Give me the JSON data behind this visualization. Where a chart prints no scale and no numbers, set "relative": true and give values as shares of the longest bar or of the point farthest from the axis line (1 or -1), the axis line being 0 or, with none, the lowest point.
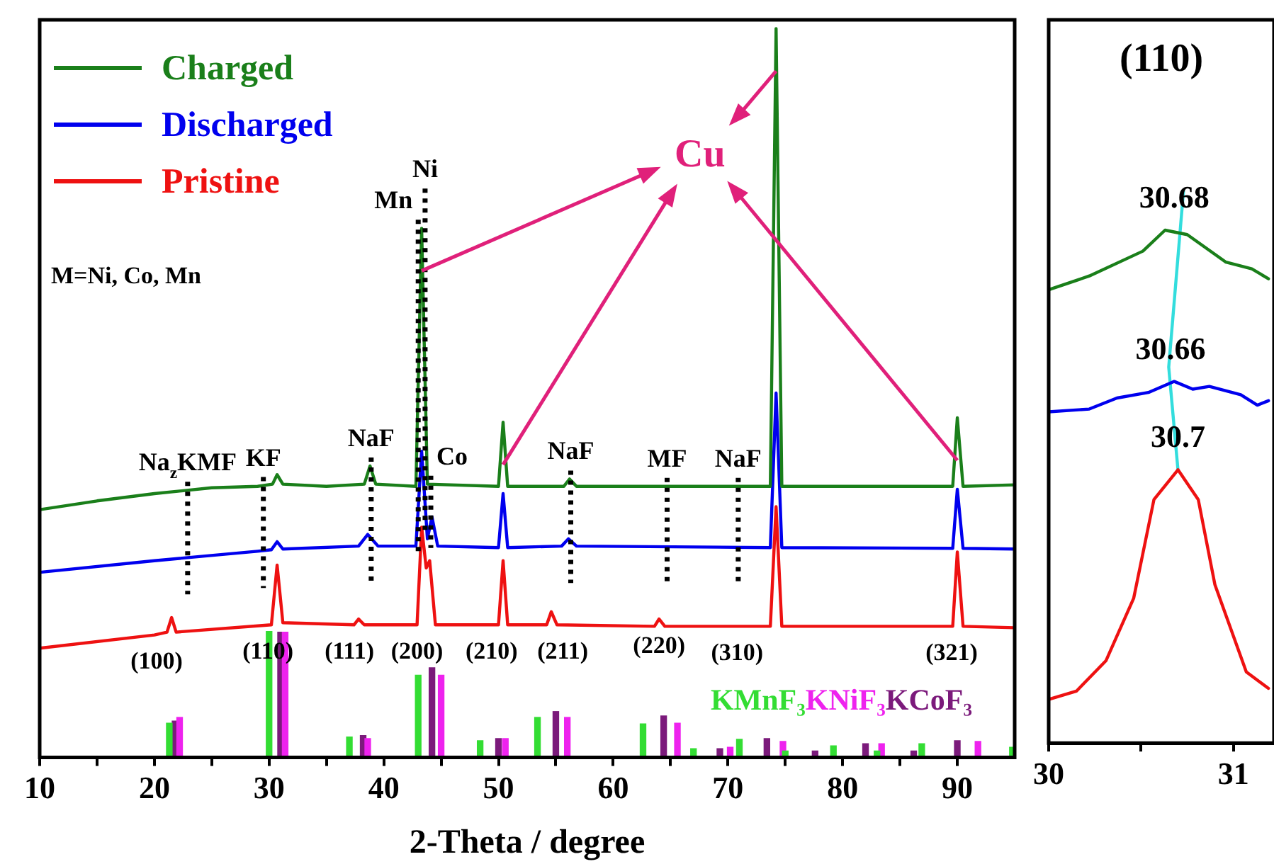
{
  "chart_data": [
    {
      "type": "line",
      "xlabel": "2-Theta / degree",
      "relative": true,
      "legend": "top left",
      "marker": "none",
      "line_style": "solid",
      "grid": false,
      "xlim": [
        10,
        95
      ],
      "xticks": [
        10,
        {
          "value": 15,
          "label": null
        },
        20,
        {
          "value": 25,
          "label": null
        },
        30,
        {
          "value": 35,
          "label": null
        },
        40,
        {
          "value": 45,
          "label": null
        },
        50,
        {
          "value": 55,
          "label": null
        },
        60,
        {
          "value": 65,
          "label": null
        },
        70,
        {
          "value": 75,
          "label": null
        },
        80,
        {
          "value": 85,
          "label": null
        },
        90
      ],
      "series": [
        {
          "name": "Charged",
          "color": "#1a7f1a",
          "type": "line",
          "x": [
            10,
            15,
            20,
            25,
            29,
            30.3,
            30.7,
            31.2,
            35,
            38.3,
            38.8,
            39.3,
            42.8,
            43.3,
            43.8,
            50.0,
            50.4,
            50.8,
            55.7,
            56.2,
            56.8,
            73.7,
            74.2,
            74.7,
            89.6,
            90.0,
            90.5,
            95
          ],
          "values": [
            0.34,
            0.352,
            0.362,
            0.37,
            0.372,
            0.375,
            0.388,
            0.375,
            0.372,
            0.375,
            0.4,
            0.375,
            0.372,
            0.726,
            0.375,
            0.372,
            0.46,
            0.372,
            0.372,
            0.382,
            0.372,
            0.372,
            1.0,
            0.372,
            0.372,
            0.466,
            0.372,
            0.374
          ]
        },
        {
          "name": "Discharged",
          "color": "#0000ee",
          "type": "line",
          "x": [
            10,
            20,
            29,
            30.2,
            30.7,
            31.2,
            37.8,
            38.6,
            39.5,
            42.8,
            43.3,
            43.8,
            44.2,
            44.7,
            50.0,
            50.4,
            50.8,
            55.5,
            56.1,
            56.8,
            73.7,
            74.2,
            74.7,
            89.6,
            90.0,
            90.5,
            95
          ],
          "values": [
            0.254,
            0.27,
            0.283,
            0.285,
            0.296,
            0.286,
            0.29,
            0.306,
            0.29,
            0.29,
            0.42,
            0.3,
            0.33,
            0.29,
            0.288,
            0.362,
            0.288,
            0.29,
            0.3,
            0.29,
            0.288,
            0.5,
            0.288,
            0.287,
            0.368,
            0.287,
            0.286
          ]
        },
        {
          "name": "Pristine",
          "color": "#ee1111",
          "type": "line",
          "x": [
            10,
            20,
            21.1,
            21.5,
            21.9,
            30.2,
            30.7,
            31.2,
            37.4,
            37.8,
            38.3,
            42.9,
            43.3,
            43.7,
            44.0,
            44.5,
            50.0,
            50.4,
            50.8,
            54.2,
            54.6,
            55.1,
            63.6,
            64.0,
            64.5,
            73.7,
            74.2,
            74.7,
            89.6,
            90.0,
            90.5,
            95
          ],
          "values": [
            0.15,
            0.168,
            0.172,
            0.192,
            0.172,
            0.182,
            0.264,
            0.185,
            0.182,
            0.19,
            0.182,
            0.182,
            0.316,
            0.26,
            0.27,
            0.182,
            0.182,
            0.27,
            0.182,
            0.182,
            0.2,
            0.182,
            0.18,
            0.19,
            0.18,
            0.18,
            0.344,
            0.18,
            0.18,
            0.282,
            0.18,
            0.178
          ]
        },
        {
          "name": "KMnF₃",
          "color": "#33dd33",
          "type": "bar",
          "x": [
            21.3,
            30.0,
            37.0,
            43.0,
            48.4,
            53.4,
            62.6,
            67.0,
            71.0,
            75.0,
            79.2,
            83.0,
            86.9,
            94.8
          ],
          "values": [
            0.047,
            0.173,
            0.028,
            0.113,
            0.023,
            0.055,
            0.046,
            0.012,
            0.025,
            0.009,
            0.016,
            0.009,
            0.019,
            0.014
          ]
        },
        {
          "name": "KNiF₃",
          "color": "#ee22ee",
          "type": "bar",
          "x": [
            22.2,
            31.4,
            38.6,
            45.0,
            50.6,
            56.0,
            65.6,
            70.2,
            74.8,
            83.4,
            91.8
          ],
          "values": [
            0.055,
            0.172,
            0.026,
            0.113,
            0.026,
            0.055,
            0.047,
            0.014,
            0.022,
            0.019,
            0.022
          ]
        },
        {
          "name": "KCoF₃",
          "color": "#7b1a7b",
          "type": "bar",
          "x": [
            21.8,
            31.0,
            38.2,
            44.2,
            50.0,
            55.0,
            64.4,
            69.3,
            73.4,
            77.6,
            82.0,
            86.2,
            90.0
          ],
          "values": [
            0.05,
            0.172,
            0.03,
            0.123,
            0.026,
            0.063,
            0.057,
            0.012,
            0.026,
            0.009,
            0.019,
            0.009,
            0.023
          ]
        }
      ],
      "ref_lines": [
        {
          "axis": "x",
          "value": 22.9,
          "label": "Na$_{z}$KMF",
          "color": "#000000",
          "line_style": "dotted"
        },
        {
          "axis": "x",
          "value": 29.5,
          "label": "KF",
          "color": "#000000",
          "line_style": "dotted"
        },
        {
          "axis": "x",
          "value": 38.9,
          "label": "NaF",
          "color": "#000000",
          "line_style": "dotted"
        },
        {
          "axis": "x",
          "value": 43.0,
          "label": "Mn",
          "color": "#000000",
          "line_style": "dotted"
        },
        {
          "axis": "x",
          "value": 43.6,
          "label": "Ni",
          "color": "#000000",
          "line_style": "dotted"
        },
        {
          "axis": "x",
          "value": 44.1,
          "label": "Co",
          "color": "#000000",
          "line_style": "dotted"
        },
        {
          "axis": "x",
          "value": 56.3,
          "label": "NaF",
          "color": "#000000",
          "line_style": "dotted"
        },
        {
          "axis": "x",
          "value": 64.7,
          "label": "MF",
          "color": "#000000",
          "line_style": "dotted"
        },
        {
          "axis": "x",
          "value": 70.9,
          "label": "NaF",
          "color": "#000000",
          "line_style": "dotted"
        }
      ],
      "annotations": [
        "M=Ni, Co, Mn",
        "Cu",
        {
          "text": "(100)",
          "x": 20.2,
          "y": 0.169
        },
        {
          "text": "(110)",
          "x": 29.9,
          "y": 0.182
        },
        {
          "text": "(111)",
          "x": 37.0,
          "y": 0.182
        },
        {
          "text": "(200)",
          "x": 42.9,
          "y": 0.182
        },
        {
          "text": "(210)",
          "x": 49.4,
          "y": 0.182
        },
        {
          "text": "(211)",
          "x": 55.6,
          "y": 0.182
        },
        {
          "text": "(220)",
          "x": 64.0,
          "y": 0.19
        },
        {
          "text": "(310)",
          "x": 70.8,
          "y": 0.18
        },
        {
          "text": "(321)",
          "x": 89.5,
          "y": 0.18
        }
      ]
    },
    {
      "type": "line",
      "title": "(110)",
      "relative": true,
      "marker": "none",
      "line_style": "solid",
      "grid": false,
      "xlim": [
        30,
        31.22
      ],
      "xticks": [
        30,
        {
          "value": 30.5,
          "label": null
        },
        31
      ],
      "series": [
        {
          "color": "#1a7f1a",
          "x": [
            30,
            30.22,
            30.51,
            30.63,
            30.75,
            30.96,
            31.1,
            31.19
          ],
          "values": [
            0.821,
            0.846,
            0.891,
            0.929,
            0.921,
            0.871,
            0.859,
            0.841
          ]
        },
        {
          "color": "#0000ee",
          "x": [
            30,
            30.22,
            30.37,
            30.54,
            30.68,
            30.78,
            30.87,
            31.04,
            31.13,
            31.19
          ],
          "values": [
            0.6,
            0.605,
            0.625,
            0.635,
            0.655,
            0.641,
            0.646,
            0.631,
            0.612,
            0.62
          ]
        },
        {
          "color": "#ee1111",
          "x": [
            30,
            30.15,
            30.31,
            30.46,
            30.57,
            30.7,
            30.81,
            30.9,
            31.07,
            31.19
          ],
          "values": [
            0.079,
            0.094,
            0.149,
            0.262,
            0.441,
            0.495,
            0.441,
            0.287,
            0.129,
            0.099
          ]
        },
        {
          "color": "#33dddd",
          "type": "line",
          "x": [
            30.73,
            30.65,
            30.7
          ],
          "values": [
            1.0,
            0.681,
            0.495
          ]
        }
      ],
      "annotations": [
        {
          "text": "30.68",
          "x": 30.68,
          "y": 0.929
        },
        {
          "text": "30.66",
          "x": 30.66,
          "y": 0.655
        },
        {
          "text": "30.7",
          "x": 30.7,
          "y": 0.495
        }
      ]
    }
  ]
}
